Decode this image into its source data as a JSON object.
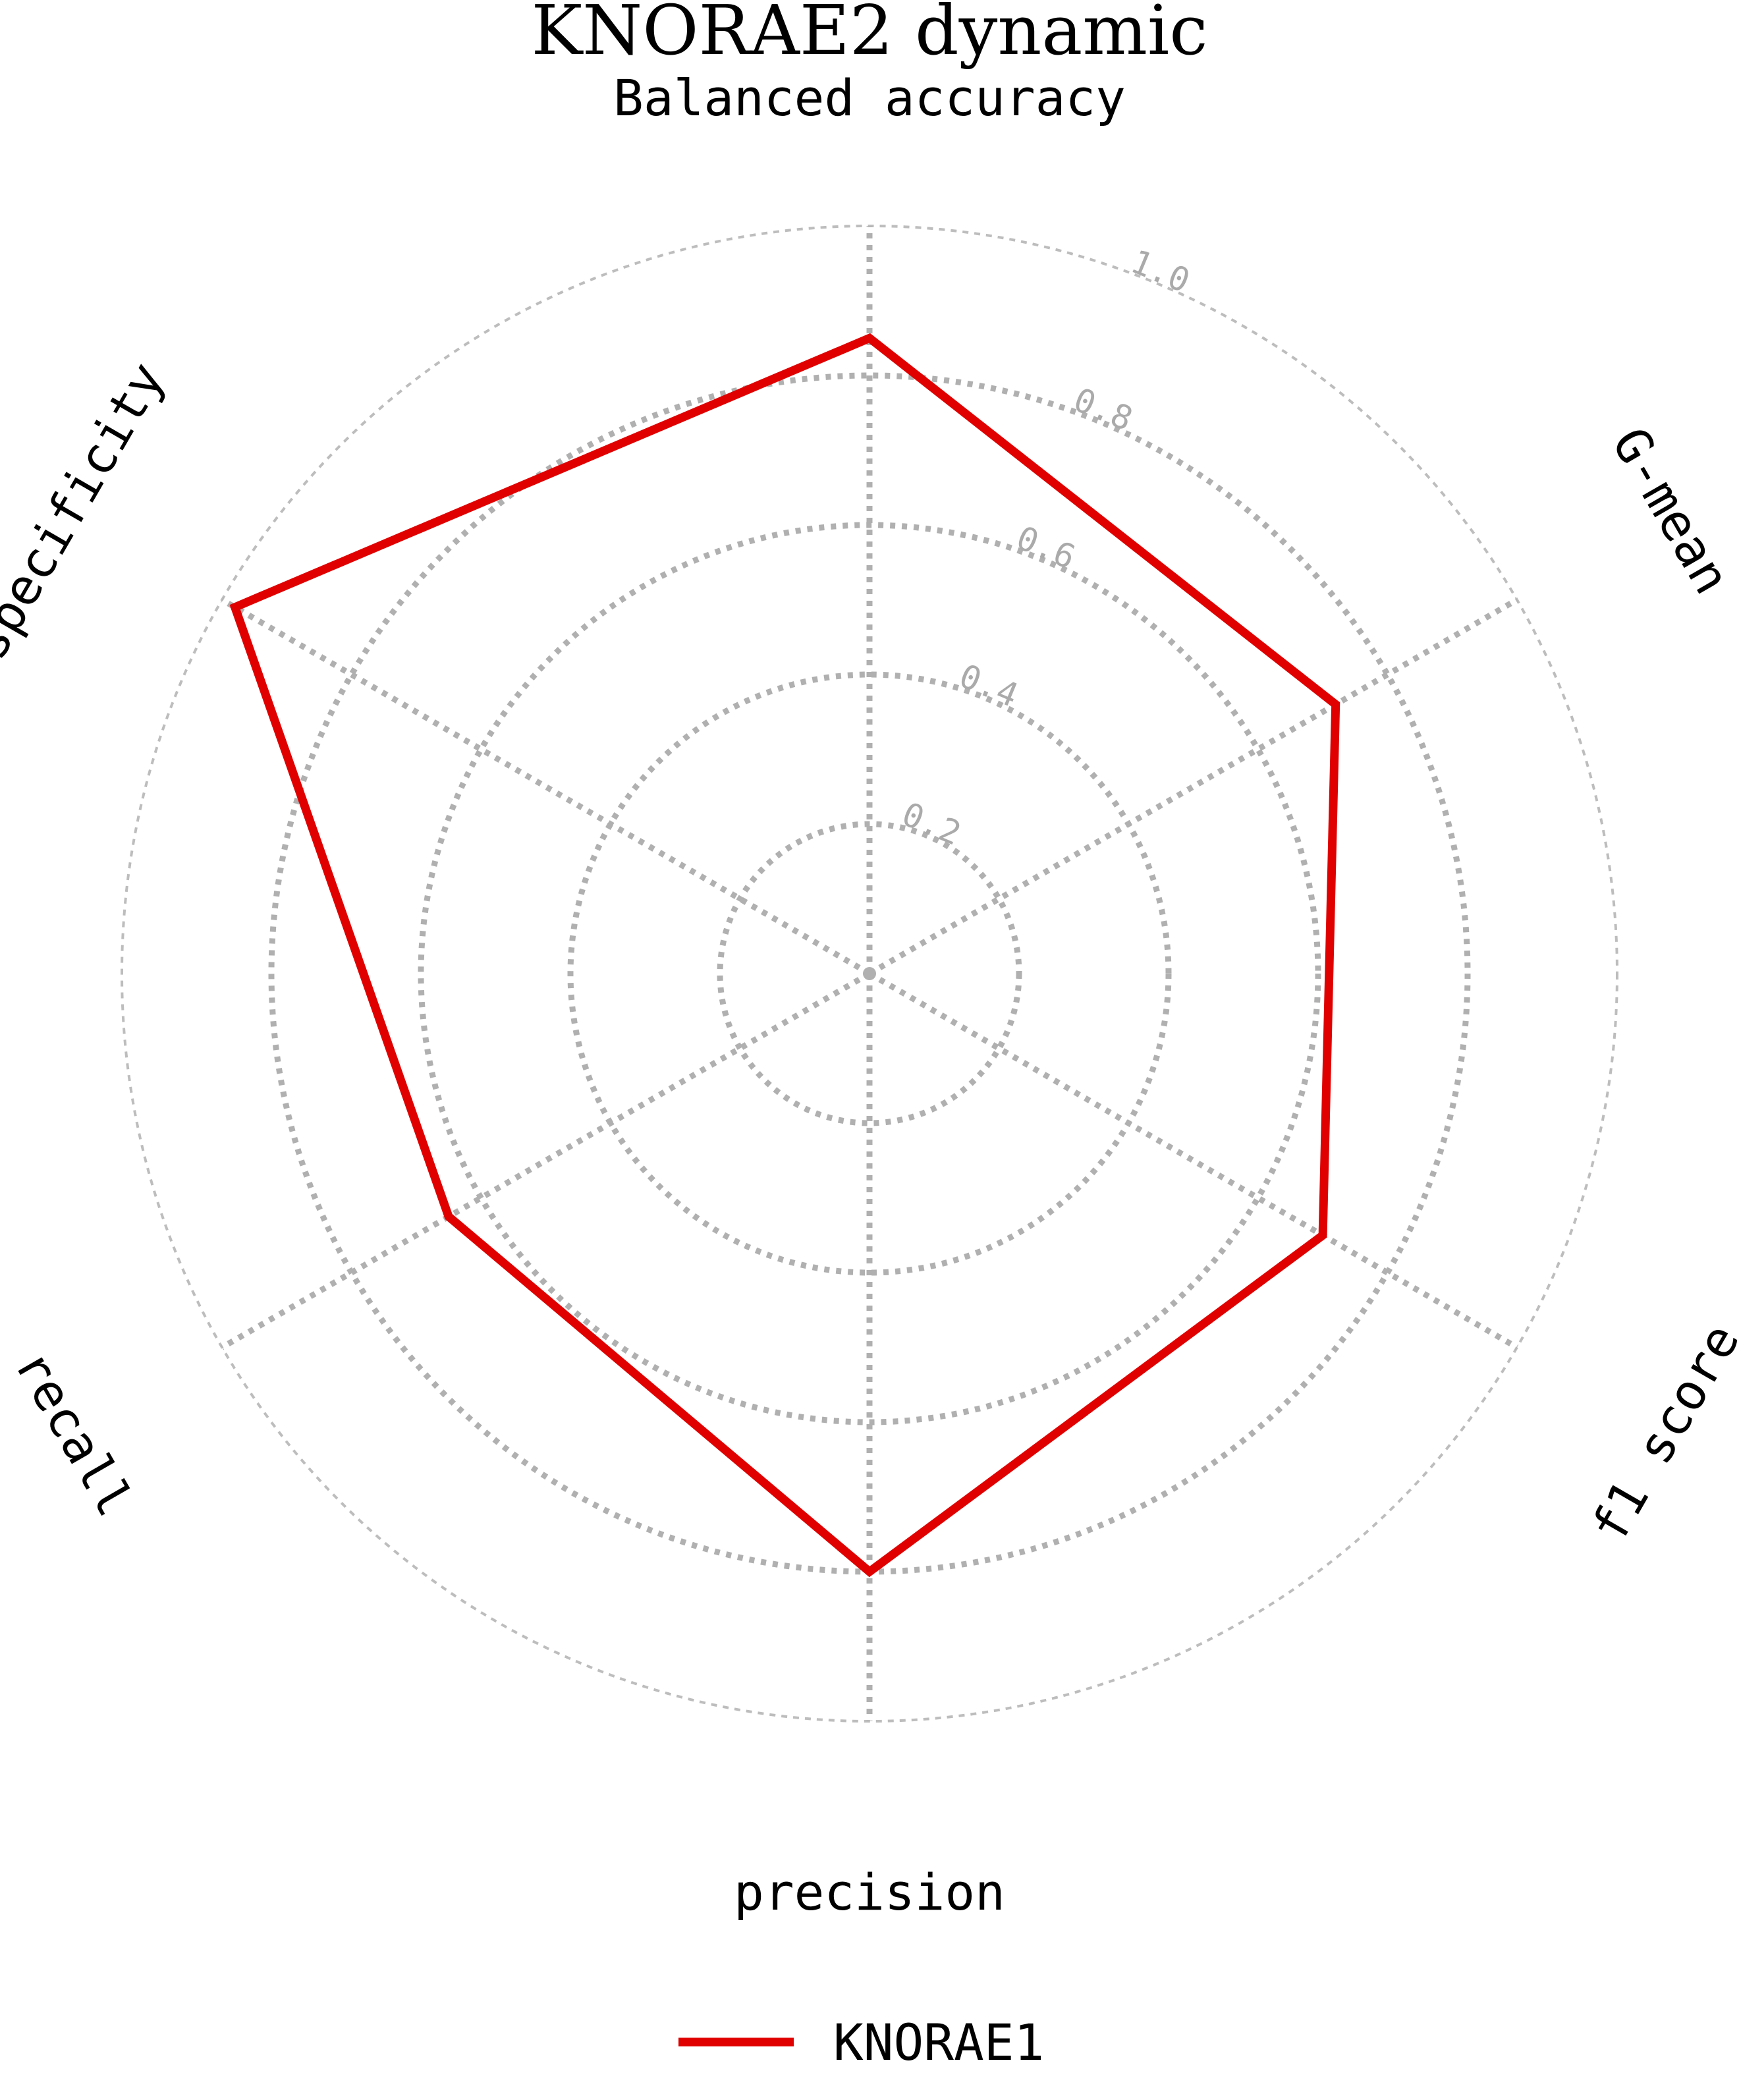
{
  "chart_data": {
    "type": "radar",
    "title": "KNORAE2 dynamic",
    "subtitle": "Balanced accuracy",
    "axes": [
      "Balanced accuracy",
      "G-mean",
      "f1 score",
      "precision",
      "recall",
      "specificity"
    ],
    "axis_labels": [
      "G-mean",
      "f1 score",
      "precision",
      "recall",
      "specificity"
    ],
    "rlim": [
      0,
      1.0
    ],
    "ring_ticks": [
      0.2,
      0.4,
      0.6,
      0.8,
      1.0
    ],
    "ring_tick_labels": [
      "0.2",
      "0.4",
      "0.6",
      "0.8",
      "1.0"
    ],
    "grid": true,
    "legend_position": "bottom",
    "series": [
      {
        "name": "KNORAE1",
        "color": "#e00000",
        "values": [
          0.85,
          0.72,
          0.7,
          0.8,
          0.65,
          0.98
        ]
      }
    ]
  }
}
